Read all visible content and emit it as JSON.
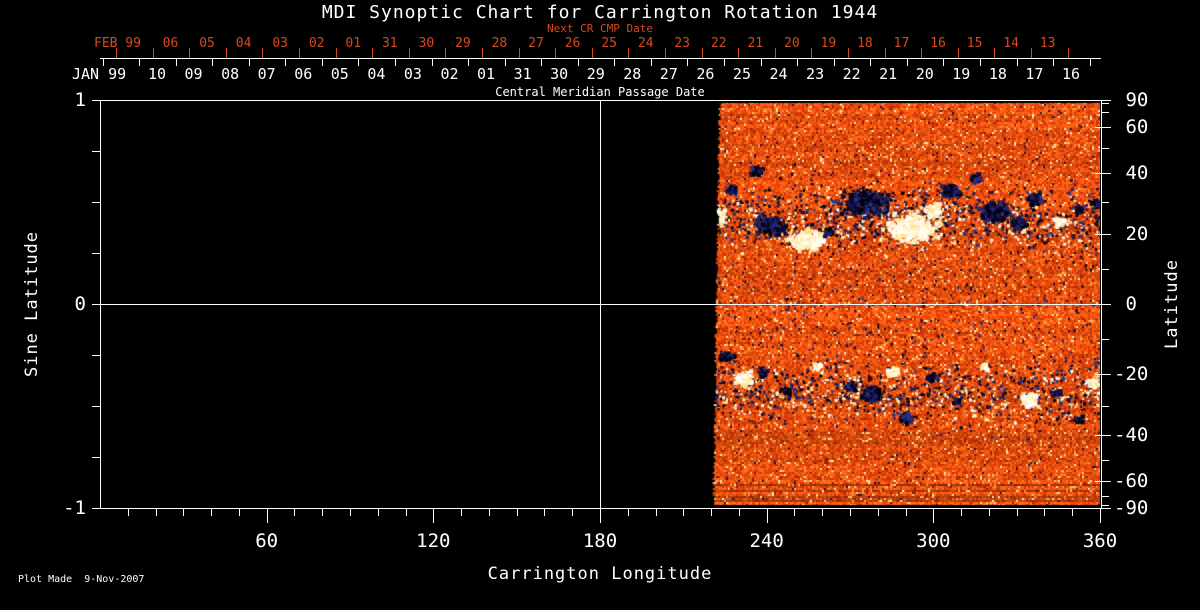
{
  "title": "MDI Synoptic Chart for Carrington Rotation 1944",
  "colors": {
    "background": "#000000",
    "foreground": "#ffffff",
    "next_cr_accent": "#d64a1e",
    "magnetogram_base": "#e85008",
    "magnetogram_negative": "#14144c",
    "magnetogram_positive": "#ffffff"
  },
  "top_axis": {
    "next_cr_label": "Next CR CMP Date",
    "next_month_label": "FEB 99",
    "next_dates": [
      "06",
      "05",
      "04",
      "03",
      "02",
      "01",
      "31",
      "30",
      "29",
      "28",
      "27",
      "26",
      "25",
      "24",
      "23",
      "22",
      "21",
      "20",
      "19",
      "18",
      "17",
      "16",
      "15",
      "14",
      "13"
    ],
    "cmp_month_label": "JAN 99",
    "cmp_dates": [
      "10",
      "09",
      "08",
      "07",
      "06",
      "05",
      "04",
      "03",
      "02",
      "01",
      "31",
      "30",
      "29",
      "28",
      "27",
      "26",
      "25",
      "24",
      "23",
      "22",
      "21",
      "20",
      "19",
      "18",
      "17",
      "16"
    ],
    "axis_title": "Central Meridian Passage Date"
  },
  "left_axis": {
    "title": "Sine Latitude",
    "ticks": [
      {
        "label": "1",
        "value": 1
      },
      {
        "label": "0",
        "value": 0
      },
      {
        "label": "-1",
        "value": -1
      }
    ]
  },
  "right_axis": {
    "title": "Latitude",
    "ticks": [
      {
        "label": "90",
        "value": 90
      },
      {
        "label": "60",
        "value": 60
      },
      {
        "label": "40",
        "value": 40
      },
      {
        "label": "20",
        "value": 20
      },
      {
        "label": "0",
        "value": 0
      },
      {
        "label": "-20",
        "value": -20
      },
      {
        "label": "-40",
        "value": -40
      },
      {
        "label": "-60",
        "value": -60
      },
      {
        "label": "-90",
        "value": -90
      }
    ]
  },
  "bottom_axis": {
    "title": "Carrington Longitude",
    "ticks": [
      {
        "label": "60",
        "value": 60
      },
      {
        "label": "120",
        "value": 120
      },
      {
        "label": "180",
        "value": 180
      },
      {
        "label": "240",
        "value": 240
      },
      {
        "label": "300",
        "value": 300
      },
      {
        "label": "360",
        "value": 360
      }
    ]
  },
  "footer": {
    "plot_made": "Plot Made  9-Nov-2007"
  },
  "chart_data": {
    "type": "heatmap",
    "title": "MDI Synoptic Chart for Carrington Rotation 1944",
    "xlabel": "Carrington Longitude",
    "ylabel_left": "Sine Latitude",
    "ylabel_right": "Latitude",
    "xlim": [
      0,
      360
    ],
    "ylim_sine": [
      -1,
      1
    ],
    "x_major_ticks": [
      60,
      120,
      180,
      240,
      300,
      360
    ],
    "x_minor_tick_step": 10,
    "left_major_ticks": [
      1,
      0,
      -1
    ],
    "left_minor_tick_step": 0.25,
    "right_labeled_latitudes": [
      90,
      60,
      40,
      20,
      0,
      -20,
      -40,
      -60,
      -90
    ],
    "right_minor_latitude_step": 10,
    "reference_lines": {
      "horizontal_at_sine_latitude": 0,
      "vertical_at_longitude": 180
    },
    "data_coverage_longitude": [
      220,
      360
    ],
    "colormap": "solar magnetogram: orange-red quiet sun, dark navy negative polarity, white/cream positive polarity",
    "active_regions": [
      {
        "lon": 222,
        "sin_lat": 0.44,
        "radius_px": 11,
        "polarity": "positive"
      },
      {
        "lon": 227,
        "sin_lat": 0.57,
        "radius_px": 7,
        "polarity": "negative"
      },
      {
        "lon": 236,
        "sin_lat": 0.66,
        "radius_px": 7,
        "polarity": "negative"
      },
      {
        "lon": 241,
        "sin_lat": 0.39,
        "radius_px": 14,
        "polarity": "negative"
      },
      {
        "lon": 254,
        "sin_lat": 0.32,
        "radius_px": 16,
        "polarity": "positive"
      },
      {
        "lon": 262,
        "sin_lat": 0.36,
        "radius_px": 6,
        "polarity": "negative"
      },
      {
        "lon": 275,
        "sin_lat": 0.5,
        "radius_px": 20,
        "polarity": "negative"
      },
      {
        "lon": 292,
        "sin_lat": 0.38,
        "radius_px": 22,
        "polarity": "positive"
      },
      {
        "lon": 300,
        "sin_lat": 0.47,
        "radius_px": 10,
        "polarity": "positive"
      },
      {
        "lon": 306,
        "sin_lat": 0.56,
        "radius_px": 11,
        "polarity": "negative"
      },
      {
        "lon": 315,
        "sin_lat": 0.62,
        "radius_px": 7,
        "polarity": "negative"
      },
      {
        "lon": 322,
        "sin_lat": 0.46,
        "radius_px": 14,
        "polarity": "negative"
      },
      {
        "lon": 330,
        "sin_lat": 0.4,
        "radius_px": 9,
        "polarity": "negative"
      },
      {
        "lon": 336,
        "sin_lat": 0.52,
        "radius_px": 9,
        "polarity": "negative"
      },
      {
        "lon": 345,
        "sin_lat": 0.41,
        "radius_px": 7,
        "polarity": "positive"
      },
      {
        "lon": 352,
        "sin_lat": 0.47,
        "radius_px": 6,
        "polarity": "negative"
      },
      {
        "lon": 358,
        "sin_lat": 0.5,
        "radius_px": 6,
        "polarity": "negative"
      },
      {
        "lon": 225,
        "sin_lat": -0.25,
        "radius_px": 8,
        "polarity": "negative"
      },
      {
        "lon": 231,
        "sin_lat": -0.36,
        "radius_px": 11,
        "polarity": "positive"
      },
      {
        "lon": 238,
        "sin_lat": -0.33,
        "radius_px": 6,
        "polarity": "negative"
      },
      {
        "lon": 247,
        "sin_lat": -0.42,
        "radius_px": 6,
        "polarity": "negative"
      },
      {
        "lon": 258,
        "sin_lat": -0.3,
        "radius_px": 5,
        "polarity": "positive"
      },
      {
        "lon": 270,
        "sin_lat": -0.4,
        "radius_px": 7,
        "polarity": "negative"
      },
      {
        "lon": 277,
        "sin_lat": -0.43,
        "radius_px": 12,
        "polarity": "negative"
      },
      {
        "lon": 285,
        "sin_lat": -0.33,
        "radius_px": 7,
        "polarity": "positive"
      },
      {
        "lon": 290,
        "sin_lat": -0.55,
        "radius_px": 9,
        "polarity": "negative"
      },
      {
        "lon": 299,
        "sin_lat": -0.35,
        "radius_px": 7,
        "polarity": "negative"
      },
      {
        "lon": 308,
        "sin_lat": -0.47,
        "radius_px": 5,
        "polarity": "negative"
      },
      {
        "lon": 318,
        "sin_lat": -0.3,
        "radius_px": 5,
        "polarity": "positive"
      },
      {
        "lon": 334,
        "sin_lat": -0.46,
        "radius_px": 10,
        "polarity": "positive"
      },
      {
        "lon": 344,
        "sin_lat": -0.43,
        "radius_px": 6,
        "polarity": "negative"
      },
      {
        "lon": 352,
        "sin_lat": -0.56,
        "radius_px": 5,
        "polarity": "negative"
      },
      {
        "lon": 357,
        "sin_lat": -0.38,
        "radius_px": 8,
        "polarity": "positive"
      }
    ]
  }
}
